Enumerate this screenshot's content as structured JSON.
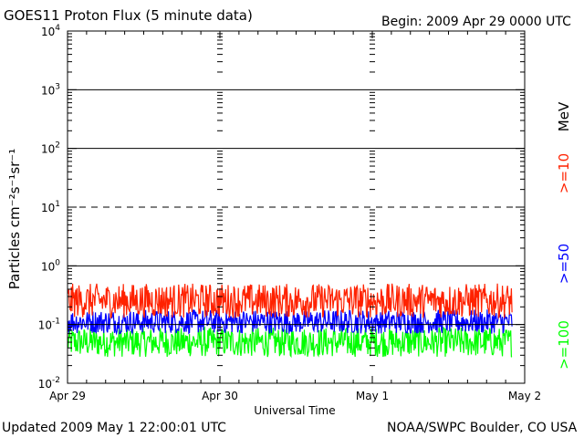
{
  "header": {
    "title": "GOES11 Proton Flux (5 minute data)",
    "begin": "Begin: 2009 Apr 29 0000 UTC"
  },
  "footer": {
    "updated": "Updated 2009 May  1 22:00:01 UTC",
    "source": "NOAA/SWPC Boulder, CO USA"
  },
  "chart_data": {
    "type": "line",
    "title": "GOES11 Proton Flux (5 minute data)",
    "xlabel": "Universal Time",
    "ylabel": "Particles cm⁻²s⁻¹sr⁻¹",
    "y_scale": "log",
    "ylim": [
      0.01,
      10000
    ],
    "xlim": [
      "2009-04-29 00:00",
      "2009-05-02 00:00"
    ],
    "x_tick_labels": [
      "Apr 29",
      "Apr 30",
      "May 1",
      "May 2"
    ],
    "y_tick_labels": [
      {
        "base": "10",
        "exp": "-2"
      },
      {
        "base": "10",
        "exp": "-1"
      },
      {
        "base": "10",
        "exp": "0"
      },
      {
        "base": "10",
        "exp": "1"
      },
      {
        "base": "10",
        "exp": "2"
      },
      {
        "base": "10",
        "exp": "3"
      },
      {
        "base": "10",
        "exp": "4"
      }
    ],
    "threshold_lines": [
      {
        "value": 10,
        "style": "dashed"
      },
      {
        "value": 1,
        "style": "solid"
      },
      {
        "value": 100,
        "style": "solid"
      },
      {
        "value": 1000,
        "style": "solid"
      },
      {
        "value": 0.1,
        "style": "solid"
      }
    ],
    "data_end": "2009-05-01 22:00",
    "energy_unit": "MeV",
    "colors": {
      "ge10": "#ff2200",
      "ge50": "#0000ff",
      "ge100": "#00ff00"
    },
    "series": [
      {
        "name": ">=10",
        "color": "#ff2200",
        "low": 0.13,
        "high": 0.5
      },
      {
        "name": ">=50",
        "color": "#0000ff",
        "low": 0.07,
        "high": 0.18
      },
      {
        "name": ">=100",
        "color": "#00ff00",
        "low": 0.028,
        "high": 0.09
      }
    ]
  }
}
